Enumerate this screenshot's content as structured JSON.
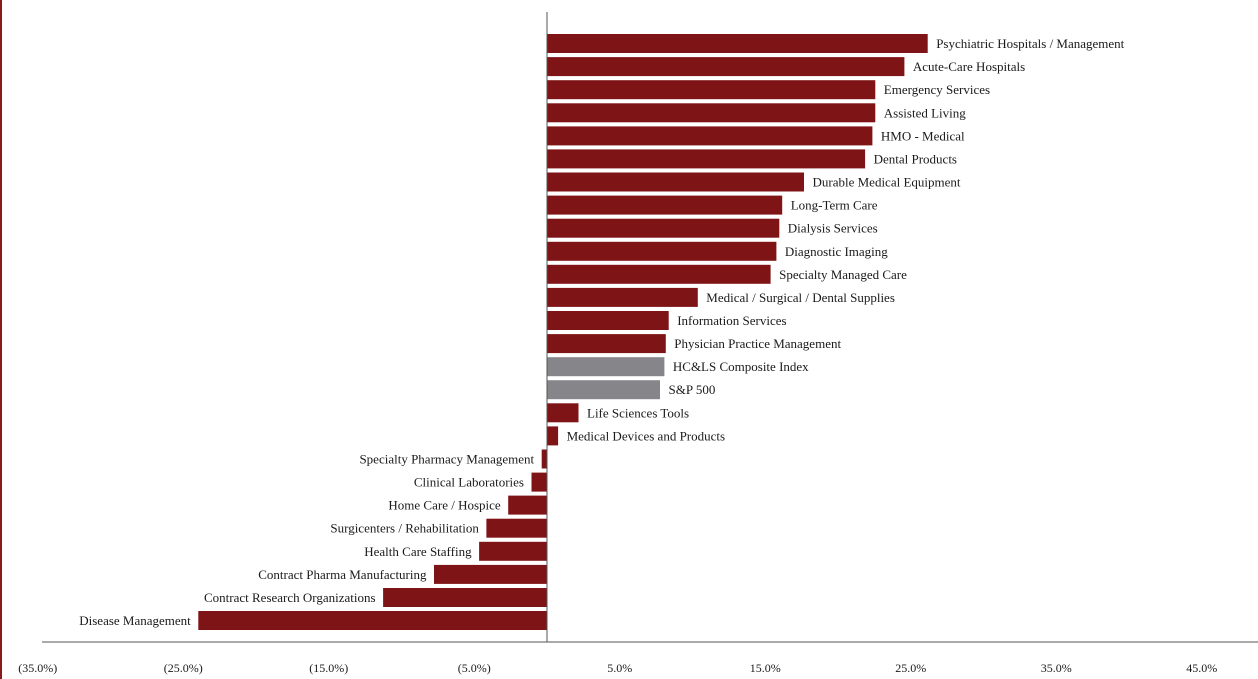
{
  "colors": {
    "sector": "#7f1416",
    "benchmark": "#86868a",
    "axis": "#555555"
  },
  "chart_data": {
    "type": "bar",
    "orientation": "horizontal",
    "title": "",
    "xlabel": "",
    "ylabel": "",
    "xlim": [
      -35,
      50
    ],
    "grid": false,
    "legend": "none",
    "x_ticks": [
      -35,
      -25,
      -15,
      -5,
      5,
      15,
      25,
      35,
      45
    ],
    "x_tick_labels": [
      "(35.0%)",
      "(25.0%)",
      "(15.0%)",
      "(5.0%)",
      "5.0%",
      "15.0%",
      "25.0%",
      "35.0%",
      "45.0%"
    ],
    "categories": [
      "Psychiatric Hospitals / Management",
      "Acute-Care Hospitals",
      "Emergency Services",
      "Assisted Living",
      "HMO - Medical",
      "Dental Products",
      "Durable Medical Equipment",
      "Long-Term Care",
      "Dialysis Services",
      "Diagnostic Imaging",
      "Specialty Managed Care",
      "Medical / Surgical / Dental Supplies",
      "Information Services",
      "Physician Practice Management",
      "HC&LS Composite Index",
      "S&P 500",
      "Life Sciences Tools",
      "Medical Devices and Products",
      "Specialty Pharmacy Management",
      "Clinical Laboratories",
      "Home Care / Hospice",
      "Surgicenters / Rehabilitation",
      "Health Care Staffing",
      "Contract Pharma Manufacturing",
      "Contract Research Organizations",
      "Disease Management"
    ],
    "values": [
      26.2,
      24.6,
      22.6,
      22.6,
      22.4,
      21.9,
      17.7,
      16.2,
      16.0,
      15.8,
      15.4,
      10.4,
      8.4,
      8.2,
      8.1,
      7.8,
      2.2,
      0.8,
      -0.4,
      -1.1,
      -2.7,
      -4.2,
      -4.7,
      -7.8,
      -11.3,
      -24.0
    ],
    "benchmarks": [
      "HC&LS Composite Index",
      "S&P 500"
    ]
  }
}
